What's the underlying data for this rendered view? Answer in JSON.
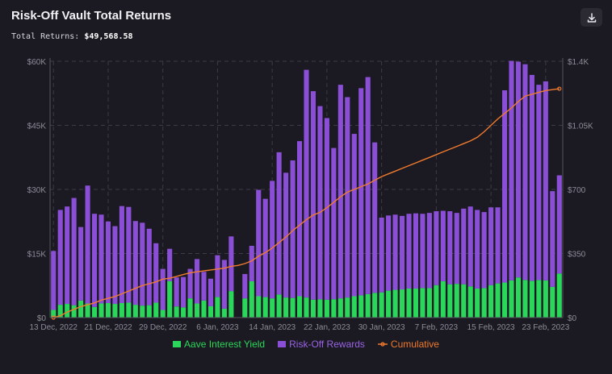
{
  "header": {
    "title": "Risk-Off Vault Total Returns",
    "total_label": "Total Returns:",
    "total_value": "$49,568.58"
  },
  "toolbar": {
    "download_icon": "download-icon"
  },
  "colors": {
    "background": "#1b1a22",
    "yield": "#2ad75a",
    "rewards": "#8a4fd6",
    "cumulative": "#f07a2e",
    "grid": "#3c3b46",
    "axis_text": "#8d8c97"
  },
  "legend": {
    "yield_label": "Aave Interest Yield",
    "rewards_label": "Risk-Off Rewards",
    "cumulative_label": "Cumulative"
  },
  "chart_data": {
    "type": "bar",
    "stacked": true,
    "x_tick_labels": [
      "13 Dec, 2022",
      "21 Dec, 2022",
      "29 Dec, 2022",
      "6 Jan, 2023",
      "14 Jan, 2023",
      "22 Jan, 2023",
      "30 Jan, 2023",
      "7 Feb, 2023",
      "15 Feb, 2023",
      "23 Feb, 2023"
    ],
    "x_tick_index": [
      0,
      8,
      16,
      24,
      32,
      40,
      48,
      56,
      64,
      72
    ],
    "y_left_ticks": [
      "$0",
      "$15K",
      "$30K",
      "$45K",
      "$60K"
    ],
    "y_left_max": 60000,
    "y_right_ticks": [
      "$0",
      "$350",
      "$700",
      "$1.05K",
      "$1.4K"
    ],
    "y_right_max": 1400,
    "grid": true,
    "legend_position": "bottom",
    "categories_note": "daily bars from 13 Dec 2022 to 25 Feb 2023",
    "series": [
      {
        "name": "Aave Interest Yield",
        "axis": "left",
        "values": [
          1800,
          3000,
          3200,
          2900,
          4000,
          3300,
          2500,
          3300,
          3400,
          3200,
          3400,
          3500,
          3000,
          2800,
          2900,
          3500,
          1800,
          8500,
          2600,
          2400,
          4500,
          3300,
          4000,
          2700,
          4800,
          2100,
          6200,
          0,
          4500,
          8500,
          5000,
          4800,
          4500,
          5400,
          4700,
          4600,
          5000,
          4700,
          4200,
          4300,
          4200,
          4300,
          4500,
          4700,
          5000,
          5200,
          5500,
          5800,
          5900,
          6300,
          6500,
          6600,
          6800,
          6800,
          6900,
          6900,
          7600,
          8500,
          7800,
          7900,
          7800,
          7300,
          6800,
          6900,
          7600,
          8000,
          8200,
          8700,
          9400,
          8800,
          8600,
          8800,
          8700,
          7200,
          10300
        ],
        "values_note": "bar at index 27 is absent"
      },
      {
        "name": "Risk-Off Rewards",
        "axis": "left",
        "values": [
          13800,
          22200,
          22800,
          25100,
          17200,
          27600,
          21800,
          20800,
          19100,
          18200,
          22700,
          22400,
          19600,
          19400,
          17900,
          13900,
          9600,
          7600,
          6800,
          7100,
          6900,
          10400,
          6700,
          6400,
          9800,
          11400,
          12800,
          0,
          5700,
          8300,
          24900,
          23000,
          27500,
          33300,
          29200,
          32200,
          36300,
          53300,
          48800,
          45200,
          42500,
          35400,
          50000,
          46900,
          38000,
          48500,
          50800,
          35200,
          17500,
          17600,
          17600,
          17200,
          17500,
          17600,
          17400,
          17600,
          17300,
          16500,
          17100,
          16600,
          17700,
          18700,
          18400,
          17800,
          18200,
          17800,
          45000,
          51400,
          50500,
          50500,
          48200,
          45700,
          46600,
          22400,
          23000
        ],
        "values_note": "bar at index 27 is absent"
      },
      {
        "name": "Cumulative",
        "type": "line",
        "axis": "right",
        "values": [
          0,
          10,
          30,
          45,
          60,
          70,
          80,
          95,
          105,
          115,
          130,
          145,
          160,
          175,
          185,
          195,
          210,
          215,
          225,
          235,
          245,
          250,
          255,
          260,
          265,
          270,
          280,
          285,
          295,
          310,
          335,
          355,
          380,
          410,
          440,
          475,
          505,
          535,
          560,
          575,
          600,
          630,
          660,
          685,
          700,
          715,
          730,
          750,
          770,
          785,
          800,
          815,
          830,
          845,
          860,
          875,
          890,
          905,
          920,
          935,
          950,
          965,
          985,
          1015,
          1050,
          1085,
          1115,
          1145,
          1180,
          1210,
          1220,
          1230,
          1240,
          1245,
          1250
        ],
        "values_note": "cumulative line rising to about 1.2K"
      }
    ]
  }
}
